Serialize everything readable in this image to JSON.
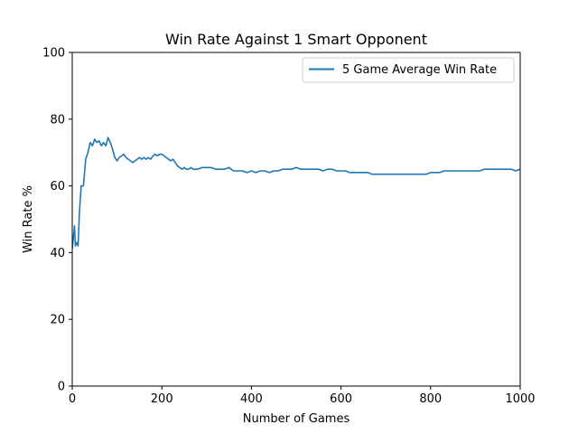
{
  "chart_data": {
    "type": "line",
    "title": "Win Rate Against 1 Smart Opponent",
    "xlabel": "Number of Games",
    "ylabel": "Win Rate %",
    "xlim": [
      0,
      1000
    ],
    "ylim": [
      0,
      100
    ],
    "xticks": [
      0,
      200,
      400,
      600,
      800,
      1000
    ],
    "yticks": [
      0,
      20,
      40,
      60,
      80,
      100
    ],
    "grid": false,
    "legend": "top-right",
    "series": [
      {
        "name": "5 Game Average Win Rate",
        "color": "#1f77b4",
        "x": [
          0,
          5,
          7,
          10,
          13,
          16,
          20,
          25,
          30,
          35,
          40,
          45,
          50,
          55,
          60,
          65,
          70,
          75,
          80,
          85,
          90,
          95,
          100,
          105,
          110,
          115,
          120,
          125,
          130,
          135,
          140,
          145,
          150,
          155,
          160,
          165,
          170,
          175,
          180,
          185,
          190,
          195,
          200,
          205,
          210,
          215,
          220,
          225,
          230,
          235,
          240,
          245,
          250,
          255,
          260,
          265,
          270,
          280,
          290,
          300,
          310,
          320,
          330,
          340,
          350,
          360,
          370,
          380,
          390,
          400,
          410,
          420,
          430,
          440,
          450,
          460,
          470,
          480,
          490,
          500,
          510,
          520,
          530,
          540,
          550,
          560,
          570,
          580,
          590,
          600,
          610,
          620,
          630,
          640,
          650,
          660,
          670,
          680,
          690,
          700,
          710,
          720,
          730,
          740,
          750,
          760,
          770,
          780,
          790,
          800,
          810,
          820,
          830,
          840,
          850,
          860,
          870,
          880,
          890,
          900,
          910,
          920,
          930,
          940,
          950,
          960,
          970,
          980,
          990,
          1000
        ],
        "y": [
          41,
          48,
          42,
          43,
          42,
          52,
          60,
          60,
          68,
          70,
          73,
          72,
          74,
          73,
          73.5,
          72,
          73,
          72,
          74.5,
          73,
          71,
          68.5,
          67.5,
          68.5,
          69,
          69.5,
          68.5,
          68,
          67.5,
          67,
          67.5,
          68,
          68.5,
          68,
          68.5,
          68,
          68.5,
          68,
          69,
          69.5,
          69,
          69.5,
          69.5,
          69,
          68.5,
          68,
          67.5,
          68,
          67,
          66,
          65.5,
          65,
          65.5,
          65,
          65,
          65.5,
          65,
          65,
          65.5,
          65.5,
          65.5,
          65,
          65,
          65,
          65.5,
          64.5,
          64.5,
          64.5,
          64,
          64.5,
          64,
          64.5,
          64.5,
          64,
          64.5,
          64.5,
          65,
          65,
          65,
          65.5,
          65,
          65,
          65,
          65,
          65,
          64.5,
          65,
          65,
          64.5,
          64.5,
          64.5,
          64,
          64,
          64,
          64,
          64,
          63.5,
          63.5,
          63.5,
          63.5,
          63.5,
          63.5,
          63.5,
          63.5,
          63.5,
          63.5,
          63.5,
          63.5,
          63.5,
          64,
          64,
          64,
          64.5,
          64.5,
          64.5,
          64.5,
          64.5,
          64.5,
          64.5,
          64.5,
          64.5,
          65,
          65,
          65,
          65,
          65,
          65,
          65,
          64.5,
          65
        ]
      }
    ]
  }
}
